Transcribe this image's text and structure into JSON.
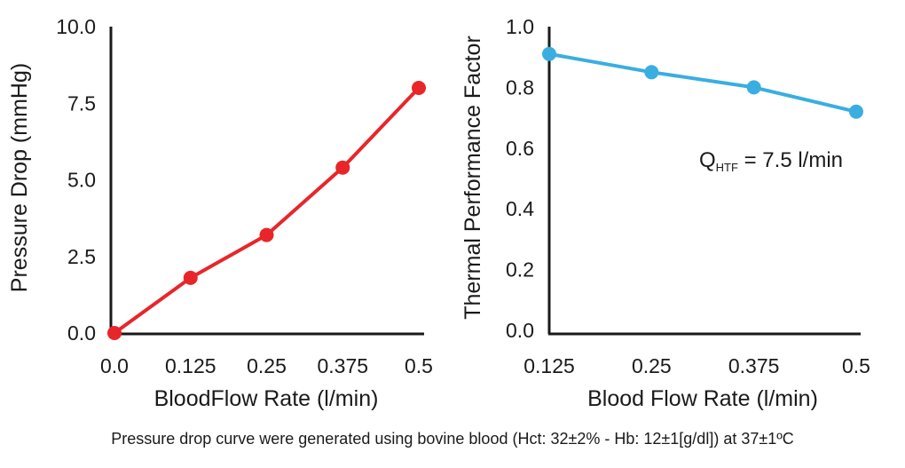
{
  "chart_data": [
    {
      "type": "line",
      "title": "",
      "xlabel": "BloodFlow Rate (l/min)",
      "ylabel": "Pressure Drop (mmHg)",
      "x": [
        0.0,
        0.125,
        0.25,
        0.375,
        0.5
      ],
      "x_tick_labels": [
        "0.0",
        "0.125",
        "0.25",
        "0.375",
        "0.5"
      ],
      "y_ticks": [
        0.0,
        2.5,
        5.0,
        7.5,
        10.0
      ],
      "y_tick_labels": [
        "0.0",
        "2.5",
        "5.0",
        "7.5",
        "10.0"
      ],
      "xlim": [
        0.0,
        0.5
      ],
      "ylim": [
        0.0,
        10.0
      ],
      "grid": false,
      "series": [
        {
          "name": "",
          "color": "#e8262a",
          "values": [
            0.0,
            1.8,
            3.2,
            5.4,
            8.0
          ]
        }
      ]
    },
    {
      "type": "line",
      "title": "",
      "xlabel": "Blood Flow Rate (l/min)",
      "ylabel": "Thermal Performance Factor",
      "x": [
        0.125,
        0.25,
        0.375,
        0.5
      ],
      "x_tick_labels": [
        "0.125",
        "0.25",
        "0.375",
        "0.5"
      ],
      "y_ticks": [
        0.0,
        0.2,
        0.4,
        0.6,
        0.8,
        1.0
      ],
      "y_tick_labels": [
        "0.0",
        "0.2",
        "0.4",
        "0.6",
        "0.8",
        "1.0"
      ],
      "xlim": [
        0.125,
        0.5
      ],
      "ylim": [
        0.0,
        1.0
      ],
      "grid": false,
      "annotation": {
        "main": "Q",
        "subscript": "HTF",
        "rest": " = 7.5 l/min"
      },
      "series": [
        {
          "name": "",
          "color": "#3aaee0",
          "values": [
            0.91,
            0.85,
            0.8,
            0.72
          ]
        }
      ]
    }
  ],
  "caption": "Pressure drop curve were generated using bovine blood (Hct: 32±2% - Hb: 12±1[g/dl]) at 37±1ºC"
}
